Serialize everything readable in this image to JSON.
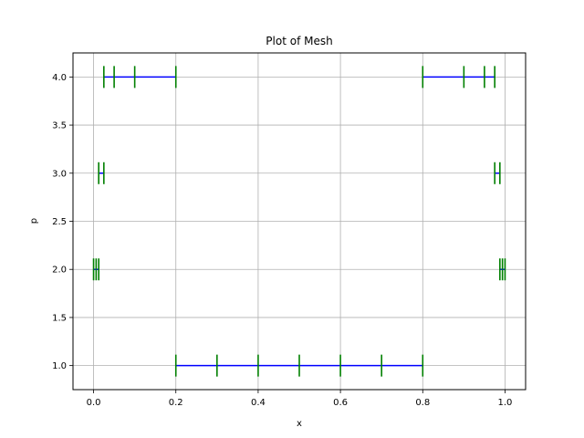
{
  "chart_data": {
    "type": "line",
    "title": "Plot of Mesh",
    "xlabel": "x",
    "ylabel": "p",
    "xlim": [
      -0.05,
      1.05
    ],
    "ylim": [
      0.75,
      4.25
    ],
    "grid": true,
    "x_ticks": [
      {
        "value": 0.0,
        "label": "0.0"
      },
      {
        "value": 0.2,
        "label": "0.2"
      },
      {
        "value": 0.4,
        "label": "0.4"
      },
      {
        "value": 0.6,
        "label": "0.6"
      },
      {
        "value": 0.8,
        "label": "0.8"
      },
      {
        "value": 1.0,
        "label": "1.0"
      }
    ],
    "y_ticks": [
      {
        "value": 1.0,
        "label": "1.0"
      },
      {
        "value": 1.5,
        "label": "1.5"
      },
      {
        "value": 2.0,
        "label": "2.0"
      },
      {
        "value": 2.5,
        "label": "2.5"
      },
      {
        "value": 3.0,
        "label": "3.0"
      },
      {
        "value": 3.5,
        "label": "3.5"
      },
      {
        "value": 4.0,
        "label": "4.0"
      }
    ],
    "line_color": "#0000ff",
    "marker_color": "#008000",
    "segments": [
      {
        "p": 1,
        "x": [
          0.2,
          0.3,
          0.4,
          0.5,
          0.6,
          0.7,
          0.8
        ]
      },
      {
        "p": 2,
        "x": [
          0.0,
          0.00625,
          0.0125
        ]
      },
      {
        "p": 2,
        "x": [
          0.9875,
          0.99375,
          1.0
        ]
      },
      {
        "p": 3,
        "x": [
          0.0125,
          0.025
        ]
      },
      {
        "p": 3,
        "x": [
          0.975,
          0.9875
        ]
      },
      {
        "p": 4,
        "x": [
          0.025,
          0.05,
          0.1,
          0.2
        ]
      },
      {
        "p": 4,
        "x": [
          0.8,
          0.9,
          0.95,
          0.975
        ]
      }
    ]
  }
}
